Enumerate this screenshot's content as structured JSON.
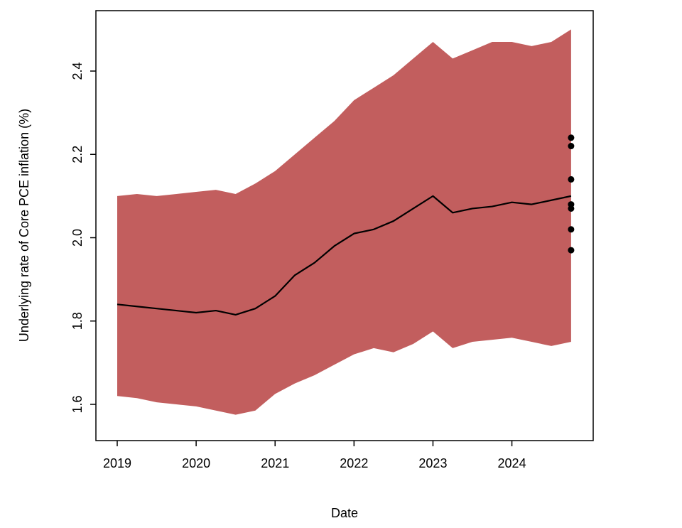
{
  "figure": {
    "xlabel": "Date",
    "ylabel": "Underlying rate of Core PCE inflation (%)"
  },
  "chart_data": {
    "type": "area",
    "title": "",
    "xlabel": "Date",
    "ylabel": "Underlying rate of Core PCE inflation (%)",
    "grid": false,
    "legend": "none",
    "xlim": [
      2018.73,
      2025.03
    ],
    "ylim": [
      1.513,
      2.545
    ],
    "xticks": [
      2019,
      2020,
      2021,
      2022,
      2023,
      2024
    ],
    "yticks": [
      1.6,
      1.8,
      2.0,
      2.2,
      2.4
    ],
    "band_color": "#C25E5E",
    "line_color": "#000000",
    "point_color": "#000000",
    "x": [
      2019.0,
      2019.25,
      2019.5,
      2019.75,
      2020.0,
      2020.25,
      2020.5,
      2020.75,
      2021.0,
      2021.25,
      2021.5,
      2021.75,
      2022.0,
      2022.25,
      2022.5,
      2022.75,
      2023.0,
      2023.25,
      2023.5,
      2023.75,
      2024.0,
      2024.25,
      2024.5,
      2024.75
    ],
    "series": [
      {
        "name": "median",
        "values": [
          1.84,
          1.835,
          1.83,
          1.825,
          1.82,
          1.825,
          1.815,
          1.83,
          1.86,
          1.91,
          1.94,
          1.98,
          2.01,
          2.02,
          2.04,
          2.07,
          2.1,
          2.06,
          2.07,
          2.075,
          2.085,
          2.08,
          2.09,
          2.1
        ]
      },
      {
        "name": "band_upper",
        "values": [
          2.1,
          2.105,
          2.1,
          2.105,
          2.11,
          2.115,
          2.105,
          2.13,
          2.16,
          2.2,
          2.24,
          2.28,
          2.33,
          2.36,
          2.39,
          2.43,
          2.47,
          2.43,
          2.45,
          2.47,
          2.47,
          2.46,
          2.47,
          2.5
        ]
      },
      {
        "name": "band_lower",
        "values": [
          1.62,
          1.615,
          1.605,
          1.6,
          1.595,
          1.585,
          1.575,
          1.585,
          1.625,
          1.65,
          1.67,
          1.695,
          1.72,
          1.735,
          1.725,
          1.745,
          1.775,
          1.735,
          1.75,
          1.755,
          1.76,
          1.75,
          1.74,
          1.75
        ]
      }
    ],
    "points": {
      "name": "survey-dots",
      "x": 2024.75,
      "values": [
        2.24,
        2.22,
        2.14,
        2.08,
        2.07,
        2.02,
        1.97
      ]
    }
  }
}
